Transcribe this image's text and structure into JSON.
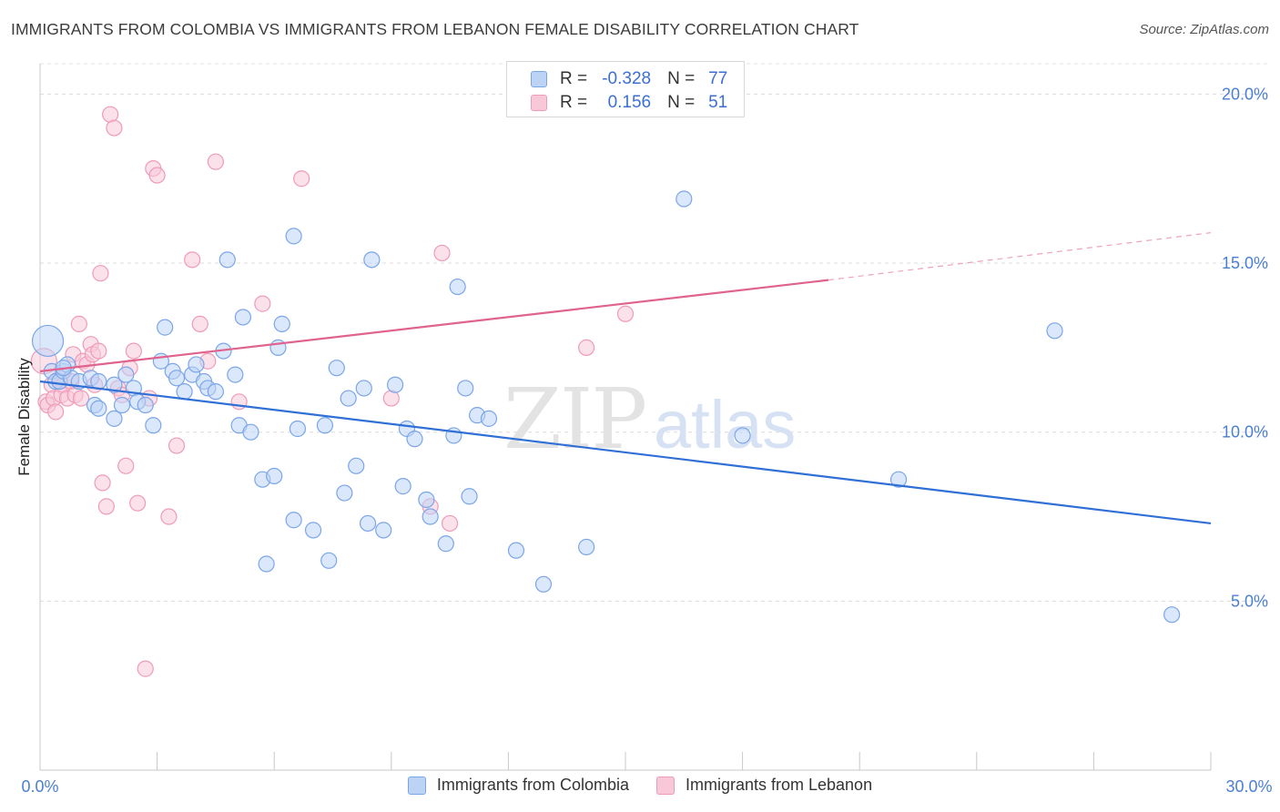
{
  "title": "IMMIGRANTS FROM COLOMBIA VS IMMIGRANTS FROM LEBANON FEMALE DISABILITY CORRELATION CHART",
  "source": "Source: ZipAtlas.com",
  "watermark": {
    "zip": "ZIP",
    "atlas": "atlas"
  },
  "legend": {
    "rows": [
      {
        "r_label": "R =",
        "r_value": "-0.328",
        "n_label": "N =",
        "n_value": "77"
      },
      {
        "r_label": "R =",
        "r_value": "0.156",
        "n_label": "N =",
        "n_value": "51"
      }
    ]
  },
  "chart_data": {
    "type": "scatter",
    "title": "IMMIGRANTS FROM COLOMBIA VS IMMIGRANTS FROM LEBANON FEMALE DISABILITY CORRELATION CHART",
    "xlabel": "",
    "ylabel": "Female Disability",
    "xlim": [
      0,
      30
    ],
    "ylim": [
      0,
      20.9
    ],
    "x_tick_labels": [
      "0.0%",
      "30.0%"
    ],
    "y_ticks": [
      5,
      10,
      15,
      20
    ],
    "y_tick_labels": [
      "5.0%",
      "10.0%",
      "15.0%",
      "20.0%"
    ],
    "grid": "horizontal dashed",
    "legend_placement": "top-center and bottom",
    "series": [
      {
        "name": "Immigrants from Colombia",
        "color": "#7aa6e8",
        "fill": "#bdd3f5",
        "R": -0.328,
        "N": 77,
        "trend": {
          "x0": 0,
          "y0": 11.5,
          "x1": 30,
          "y1": 7.3
        },
        "points": [
          [
            0.2,
            12.7
          ],
          [
            0.3,
            11.8
          ],
          [
            0.4,
            11.5
          ],
          [
            0.5,
            11.5
          ],
          [
            0.6,
            11.8
          ],
          [
            0.7,
            12.0
          ],
          [
            0.8,
            11.6
          ],
          [
            1.0,
            11.5
          ],
          [
            1.3,
            11.6
          ],
          [
            1.5,
            11.5
          ],
          [
            1.4,
            10.8
          ],
          [
            1.5,
            10.7
          ],
          [
            1.9,
            11.4
          ],
          [
            1.9,
            10.4
          ],
          [
            2.1,
            10.8
          ],
          [
            2.2,
            11.7
          ],
          [
            2.4,
            11.3
          ],
          [
            2.5,
            10.9
          ],
          [
            2.7,
            10.8
          ],
          [
            2.9,
            10.2
          ],
          [
            3.1,
            12.1
          ],
          [
            3.2,
            13.1
          ],
          [
            3.4,
            11.8
          ],
          [
            3.5,
            11.6
          ],
          [
            3.7,
            11.2
          ],
          [
            3.9,
            11.7
          ],
          [
            4.0,
            12.0
          ],
          [
            4.2,
            11.5
          ],
          [
            4.3,
            11.3
          ],
          [
            4.5,
            11.2
          ],
          [
            4.7,
            12.4
          ],
          [
            4.8,
            15.1
          ],
          [
            5.0,
            11.7
          ],
          [
            5.1,
            10.2
          ],
          [
            5.2,
            13.4
          ],
          [
            5.4,
            10.0
          ],
          [
            5.7,
            8.6
          ],
          [
            5.8,
            6.1
          ],
          [
            6.0,
            8.7
          ],
          [
            6.1,
            12.5
          ],
          [
            6.2,
            13.2
          ],
          [
            6.5,
            15.8
          ],
          [
            6.5,
            7.4
          ],
          [
            6.6,
            10.1
          ],
          [
            7.0,
            7.1
          ],
          [
            7.3,
            10.2
          ],
          [
            7.4,
            6.2
          ],
          [
            7.6,
            11.9
          ],
          [
            7.8,
            8.2
          ],
          [
            7.9,
            11.0
          ],
          [
            8.1,
            9.0
          ],
          [
            8.3,
            11.3
          ],
          [
            8.4,
            7.3
          ],
          [
            8.5,
            15.1
          ],
          [
            8.8,
            7.1
          ],
          [
            9.1,
            11.4
          ],
          [
            9.3,
            8.4
          ],
          [
            9.4,
            10.1
          ],
          [
            9.6,
            9.8
          ],
          [
            9.9,
            8.0
          ],
          [
            10.0,
            7.5
          ],
          [
            10.4,
            6.7
          ],
          [
            10.6,
            9.9
          ],
          [
            10.7,
            14.3
          ],
          [
            10.9,
            11.3
          ],
          [
            11.0,
            8.1
          ],
          [
            11.2,
            10.5
          ],
          [
            11.5,
            10.4
          ],
          [
            12.2,
            6.5
          ],
          [
            12.9,
            5.5
          ],
          [
            14.0,
            6.6
          ],
          [
            16.5,
            16.9
          ],
          [
            18.0,
            9.9
          ],
          [
            22.0,
            8.6
          ],
          [
            26.0,
            13.0
          ],
          [
            29.0,
            4.6
          ],
          [
            0.6,
            11.9
          ]
        ]
      },
      {
        "name": "Immigrants from Lebanon",
        "color": "#ef9bb7",
        "fill": "#f8c8d8",
        "R": 0.156,
        "N": 51,
        "trend": {
          "x0": 0,
          "y0": 11.8,
          "x1": 20.2,
          "y1": 14.5,
          "dashed_to_x": 30,
          "dashed_to_y": 15.9
        },
        "points": [
          [
            0.1,
            12.1
          ],
          [
            0.15,
            10.9
          ],
          [
            0.2,
            10.8
          ],
          [
            0.3,
            11.4
          ],
          [
            0.35,
            11.0
          ],
          [
            0.4,
            10.6
          ],
          [
            0.5,
            11.6
          ],
          [
            0.55,
            11.1
          ],
          [
            0.6,
            11.4
          ],
          [
            0.7,
            11.0
          ],
          [
            0.8,
            11.5
          ],
          [
            0.85,
            12.3
          ],
          [
            0.9,
            11.1
          ],
          [
            1.0,
            13.2
          ],
          [
            1.05,
            11.0
          ],
          [
            1.1,
            12.1
          ],
          [
            1.2,
            12.0
          ],
          [
            1.3,
            12.6
          ],
          [
            1.35,
            12.3
          ],
          [
            1.4,
            11.4
          ],
          [
            1.5,
            12.4
          ],
          [
            1.55,
            14.7
          ],
          [
            1.6,
            8.5
          ],
          [
            1.7,
            7.8
          ],
          [
            1.8,
            19.4
          ],
          [
            1.9,
            19.0
          ],
          [
            2.0,
            11.3
          ],
          [
            2.1,
            11.1
          ],
          [
            2.2,
            9.0
          ],
          [
            2.3,
            11.9
          ],
          [
            2.4,
            12.4
          ],
          [
            2.5,
            7.9
          ],
          [
            2.7,
            3.0
          ],
          [
            2.8,
            11.0
          ],
          [
            2.9,
            17.8
          ],
          [
            3.0,
            17.6
          ],
          [
            3.3,
            7.5
          ],
          [
            3.5,
            9.6
          ],
          [
            3.9,
            15.1
          ],
          [
            4.1,
            13.2
          ],
          [
            4.3,
            12.1
          ],
          [
            4.5,
            18.0
          ],
          [
            5.1,
            10.9
          ],
          [
            5.7,
            13.8
          ],
          [
            6.7,
            17.5
          ],
          [
            9.0,
            11.0
          ],
          [
            10.0,
            7.8
          ],
          [
            10.3,
            15.3
          ],
          [
            10.5,
            7.3
          ],
          [
            14.0,
            12.5
          ],
          [
            15.0,
            13.5
          ]
        ]
      }
    ]
  }
}
